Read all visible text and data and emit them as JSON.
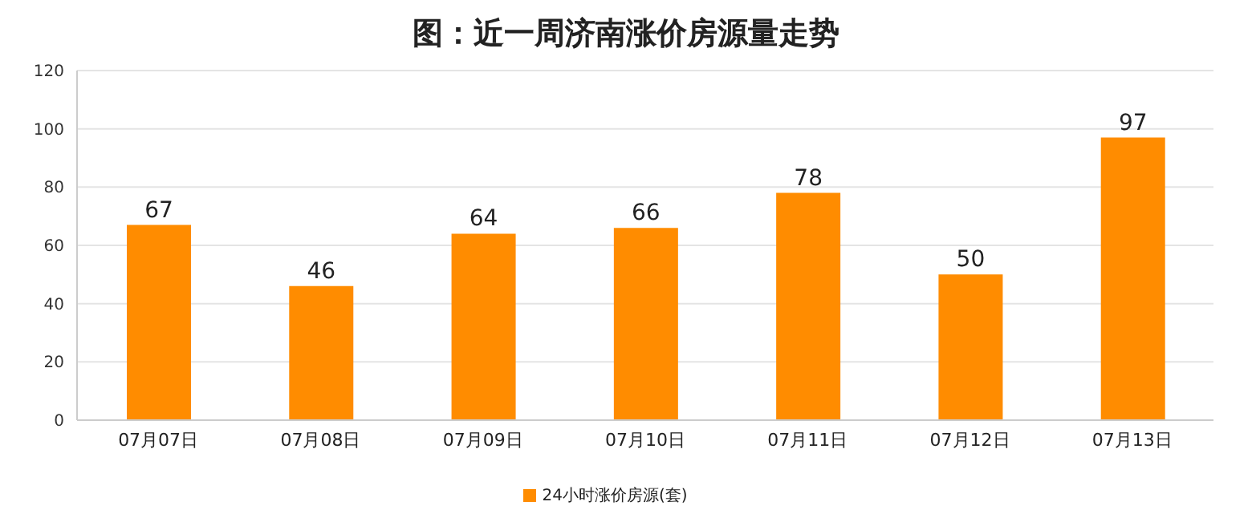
{
  "chart_data": {
    "type": "bar",
    "title": "图：近一周济南涨价房源量走势",
    "categories": [
      "07月07日",
      "07月08日",
      "07月09日",
      "07月10日",
      "07月11日",
      "07月12日",
      "07月13日"
    ],
    "series": [
      {
        "name": "24小时涨价房源(套)",
        "color": "#ff8c00",
        "values": [
          67,
          46,
          64,
          66,
          78,
          50,
          97
        ]
      }
    ],
    "ylim": [
      0,
      120
    ],
    "yticks": [
      0,
      20,
      40,
      60,
      80,
      100,
      120
    ],
    "grid": "y",
    "legend": "bottom",
    "data_labels": true
  }
}
